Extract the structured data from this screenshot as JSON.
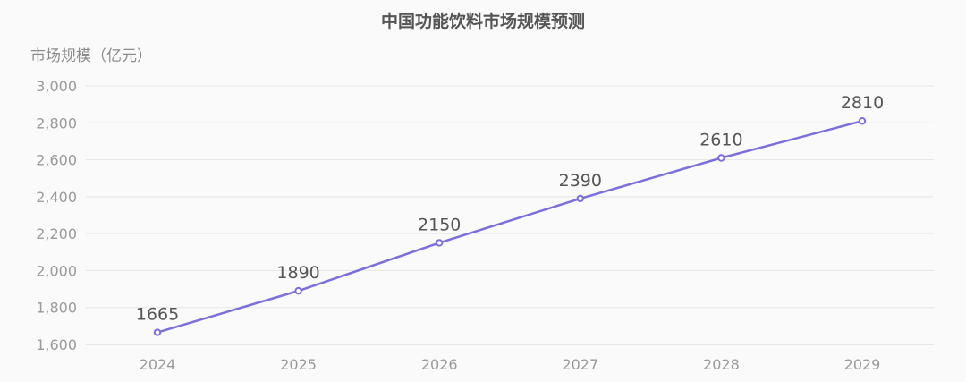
{
  "chart_data": {
    "type": "line",
    "title": "中国功能饮料市场规模预测",
    "xlabel": "",
    "ylabel": "市场规模（亿元）",
    "categories": [
      "2024",
      "2025",
      "2026",
      "2027",
      "2028",
      "2029"
    ],
    "series": [
      {
        "values": [
          1665,
          1890,
          2150,
          2390,
          2610,
          2810
        ],
        "color": "#7b6fdc"
      }
    ],
    "ylim": [
      1600,
      3000
    ],
    "yticks": [
      1600,
      1800,
      2000,
      2200,
      2400,
      2600,
      2800,
      3000
    ],
    "ytick_labels": [
      "1,600",
      "1,800",
      "2,000",
      "2,200",
      "2,400",
      "2,600",
      "2,800",
      "3,000"
    ],
    "grid": true,
    "data_labels": true
  }
}
